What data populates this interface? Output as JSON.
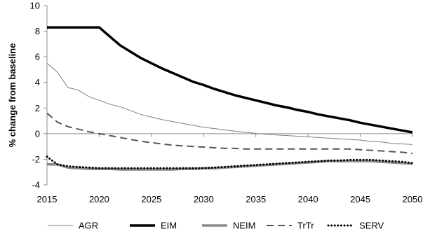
{
  "chart_data": {
    "type": "line",
    "title": "",
    "xlabel": "",
    "ylabel": "% change from baseline",
    "xlim": [
      2015,
      2050
    ],
    "ylim": [
      -4,
      10
    ],
    "xticks": [
      "2015",
      "2020",
      "2025",
      "2030",
      "2035",
      "2040",
      "2045",
      "2050"
    ],
    "yticks": [
      "10",
      "8",
      "6",
      "4",
      "2",
      "0",
      "-2",
      "-4"
    ],
    "grid": false,
    "legend_position": "bottom",
    "x": [
      2015,
      2016,
      2017,
      2018,
      2019,
      2020,
      2021,
      2022,
      2023,
      2024,
      2025,
      2026,
      2027,
      2028,
      2029,
      2030,
      2031,
      2032,
      2033,
      2034,
      2035,
      2036,
      2037,
      2038,
      2039,
      2040,
      2041,
      2042,
      2043,
      2044,
      2045,
      2046,
      2047,
      2048,
      2049,
      2050
    ],
    "series": [
      {
        "name": "AGR",
        "color": "#7f7f7f",
        "style": "thin-solid",
        "values": [
          5.5,
          4.8,
          3.6,
          3.4,
          2.9,
          2.6,
          2.3,
          2.1,
          1.8,
          1.5,
          1.3,
          1.1,
          0.95,
          0.8,
          0.65,
          0.5,
          0.4,
          0.3,
          0.2,
          0.1,
          0.02,
          -0.05,
          -0.1,
          -0.15,
          -0.2,
          -0.25,
          -0.3,
          -0.35,
          -0.4,
          -0.45,
          -0.5,
          -0.6,
          -0.65,
          -0.75,
          -0.8,
          -0.85
        ]
      },
      {
        "name": "EIM",
        "color": "#000000",
        "style": "thick-solid",
        "values": [
          8.3,
          8.3,
          8.3,
          8.3,
          8.3,
          8.3,
          7.6,
          6.9,
          6.4,
          5.9,
          5.5,
          5.1,
          4.75,
          4.4,
          4.05,
          3.8,
          3.5,
          3.25,
          3.0,
          2.8,
          2.6,
          2.4,
          2.2,
          2.05,
          1.85,
          1.7,
          1.5,
          1.35,
          1.2,
          1.05,
          0.85,
          0.7,
          0.55,
          0.4,
          0.25,
          0.1
        ]
      },
      {
        "name": "NEIM",
        "color": "#8c8c8c",
        "style": "thick-solid",
        "values": [
          -2.4,
          -2.4,
          -2.65,
          -2.7,
          -2.75,
          -2.75,
          -2.75,
          -2.8,
          -2.8,
          -2.8,
          -2.8,
          -2.8,
          -2.8,
          -2.75,
          -2.75,
          -2.7,
          -2.7,
          -2.65,
          -2.6,
          -2.55,
          -2.5,
          -2.45,
          -2.4,
          -2.35,
          -2.3,
          -2.25,
          -2.2,
          -2.15,
          -2.15,
          -2.15,
          -2.15,
          -2.15,
          -2.2,
          -2.25,
          -2.3,
          -2.35
        ]
      },
      {
        "name": "TrTr",
        "color": "#555555",
        "style": "dashed",
        "values": [
          1.6,
          0.9,
          0.55,
          0.35,
          0.15,
          0.0,
          -0.15,
          -0.3,
          -0.45,
          -0.6,
          -0.7,
          -0.8,
          -0.9,
          -0.95,
          -1.0,
          -1.05,
          -1.1,
          -1.15,
          -1.15,
          -1.2,
          -1.2,
          -1.2,
          -1.2,
          -1.2,
          -1.2,
          -1.2,
          -1.2,
          -1.2,
          -1.2,
          -1.2,
          -1.25,
          -1.3,
          -1.35,
          -1.4,
          -1.45,
          -1.55
        ]
      },
      {
        "name": "SERV",
        "color": "#000000",
        "style": "dotted",
        "values": [
          -1.8,
          -2.4,
          -2.55,
          -2.6,
          -2.65,
          -2.7,
          -2.7,
          -2.7,
          -2.7,
          -2.7,
          -2.7,
          -2.7,
          -2.7,
          -2.7,
          -2.7,
          -2.7,
          -2.65,
          -2.6,
          -2.55,
          -2.5,
          -2.45,
          -2.4,
          -2.35,
          -2.3,
          -2.25,
          -2.2,
          -2.15,
          -2.1,
          -2.1,
          -2.05,
          -2.05,
          -2.05,
          -2.1,
          -2.15,
          -2.2,
          -2.3
        ]
      }
    ]
  }
}
